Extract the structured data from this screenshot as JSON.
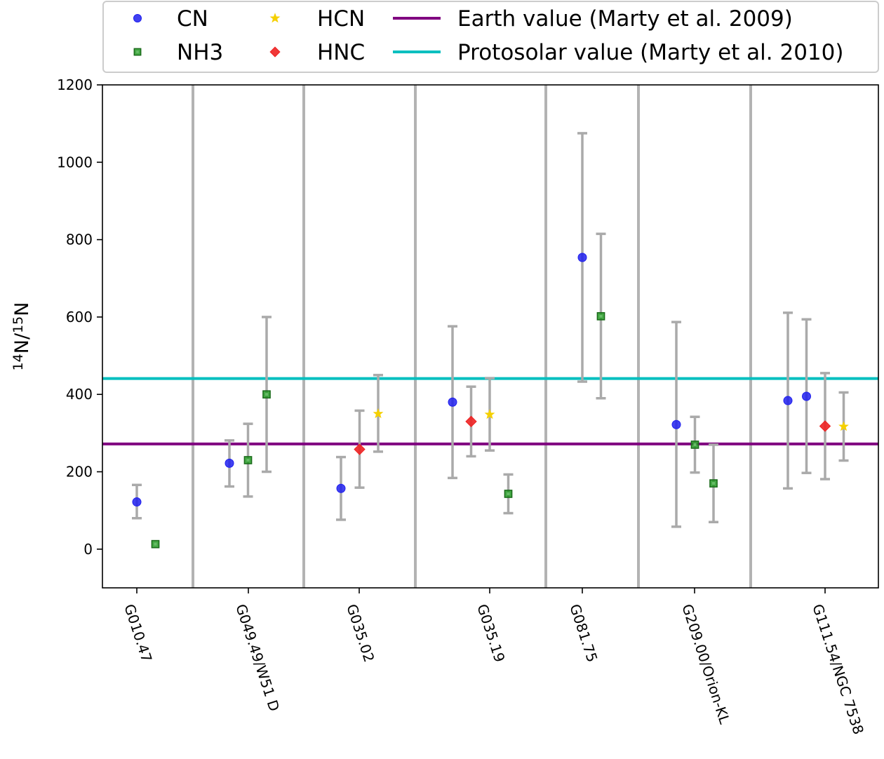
{
  "chart_data": {
    "type": "scatter",
    "ylabel": "14N/15N",
    "ylabel_parts": {
      "sup1": "14",
      "n1": "N/",
      "sup2": "15",
      "n2": "N"
    },
    "ylim": [
      -100,
      1200
    ],
    "yticks": [
      0,
      200,
      400,
      600,
      800,
      1000,
      1200
    ],
    "grid": false,
    "legend_placement": "top (above plot)",
    "groups": [
      "G010.47",
      "G049.49/W51 D",
      "G035.02",
      "G035.19",
      "G081.75",
      "G209.00/Orion-KL",
      "G111.54/NGC 7538"
    ],
    "separators_after_group": [
      0,
      1,
      2,
      3,
      4,
      5
    ],
    "series": [
      {
        "name": "CN",
        "color": "#2020ee",
        "marker": "circle",
        "points": [
          {
            "group": 0,
            "slot": 0,
            "y": 122,
            "err": [
              80,
              166
            ]
          },
          {
            "group": 1,
            "slot": 0,
            "y": 222,
            "err": [
              162,
              281
            ]
          },
          {
            "group": 2,
            "slot": 0,
            "y": 157,
            "err": [
              76,
              238
            ]
          },
          {
            "group": 3,
            "slot": 0,
            "y": 380,
            "err": [
              184,
              576
            ]
          },
          {
            "group": 4,
            "slot": 0,
            "y": 754,
            "err": [
              433,
              1075
            ]
          },
          {
            "group": 5,
            "slot": 0,
            "y": 322,
            "err": [
              58,
              587
            ]
          },
          {
            "group": 6,
            "slot": 0,
            "y": 384,
            "err": [
              157,
              611
            ]
          },
          {
            "group": 6,
            "slot": 1,
            "y": 395,
            "err": [
              197,
              594
            ]
          }
        ]
      },
      {
        "name": "NH3",
        "color": "#229922",
        "marker": "square",
        "points": [
          {
            "group": 0,
            "slot": 1,
            "y": 13
          },
          {
            "group": 1,
            "slot": 1,
            "y": 230,
            "err": [
              136,
              324
            ]
          },
          {
            "group": 1,
            "slot": 2,
            "y": 400,
            "err": [
              200,
              600
            ]
          },
          {
            "group": 3,
            "slot": 3,
            "y": 143,
            "err": [
              93,
              193
            ]
          },
          {
            "group": 4,
            "slot": 1,
            "y": 602,
            "err": [
              390,
              815
            ]
          },
          {
            "group": 5,
            "slot": 1,
            "y": 270,
            "err": [
              198,
              342
            ]
          },
          {
            "group": 5,
            "slot": 2,
            "y": 170,
            "err": [
              70,
              270
            ]
          }
        ]
      },
      {
        "name": "HCN",
        "color": "#f5d000",
        "marker": "star",
        "points": [
          {
            "group": 2,
            "slot": 2,
            "y": 350,
            "err": [
              252,
              450
            ]
          },
          {
            "group": 3,
            "slot": 2,
            "y": 348,
            "err": [
              255,
              442
            ]
          },
          {
            "group": 6,
            "slot": 3,
            "y": 317,
            "err": [
              229,
              405
            ]
          }
        ]
      },
      {
        "name": "HNC",
        "color": "#ee2222",
        "marker": "diamond",
        "points": [
          {
            "group": 2,
            "slot": 1,
            "y": 258,
            "err": [
              159,
              358
            ]
          },
          {
            "group": 3,
            "slot": 1,
            "y": 330,
            "err": [
              240,
              420
            ]
          },
          {
            "group": 6,
            "slot": 2,
            "y": 318,
            "err": [
              181,
              455
            ]
          }
        ]
      }
    ],
    "reference_lines": [
      {
        "name": "Earth value (Marty et al. 2009)",
        "y": 272,
        "color": "#800080"
      },
      {
        "name": "Protosolar value (Marty et al. 2010)",
        "y": 441,
        "color": "#00bfbf"
      }
    ],
    "legend": {
      "columns": [
        [
          {
            "label": "CN",
            "series": 0
          },
          {
            "label": "NH3",
            "series": 1
          }
        ],
        [
          {
            "label": "HCN",
            "series": 2
          },
          {
            "label": "HNC",
            "series": 3
          }
        ],
        [
          {
            "label": "Earth value (Marty et al. 2009)",
            "line": 0
          },
          {
            "label": "Protosolar value (Marty et al. 2010)",
            "line": 1
          }
        ]
      ]
    },
    "colors": {
      "errorbar": "#aaaaaa",
      "separator": "#b3b3b3",
      "axis": "#000000"
    }
  }
}
